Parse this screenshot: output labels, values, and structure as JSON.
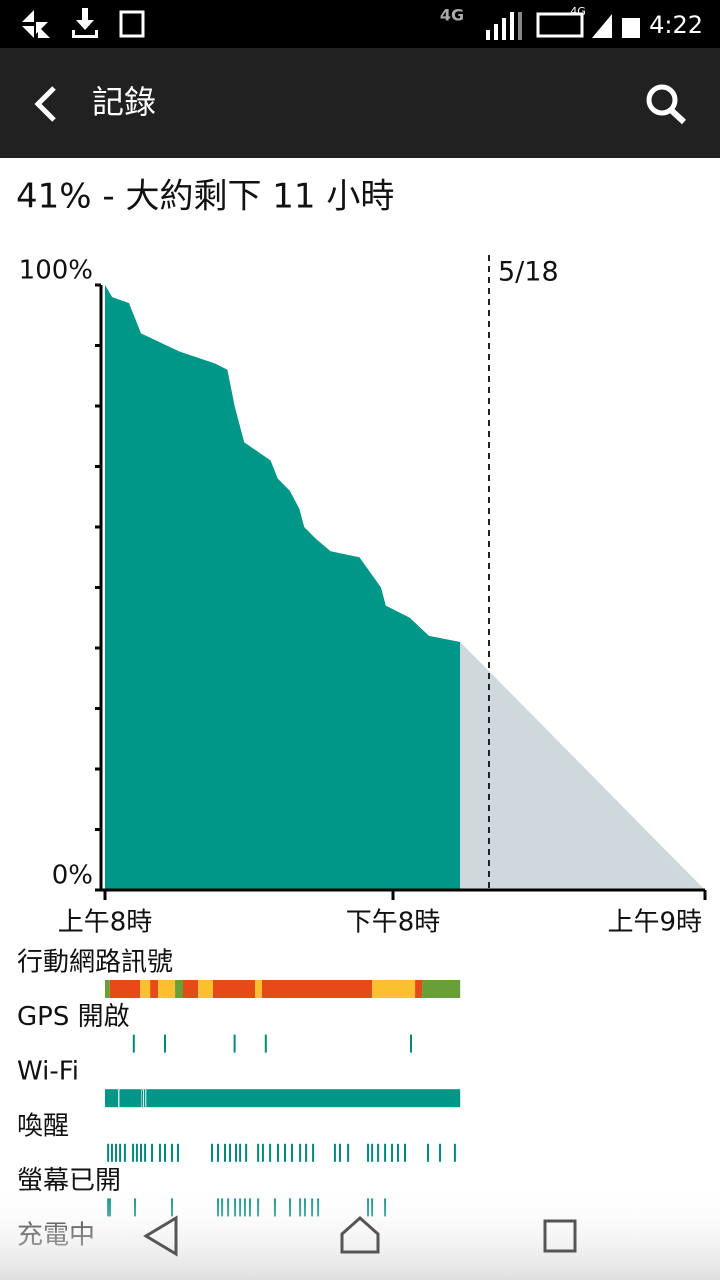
{
  "status_bar": {
    "network": "4G",
    "network2": "4G",
    "time": "4:22"
  },
  "app_bar": {
    "title": "記錄"
  },
  "summary": "41% - 大約剩下 11 小時",
  "chart_data": {
    "type": "area",
    "x": [
      0,
      0.3,
      1.0,
      1.3,
      1.5,
      3.1,
      4.6,
      5.1,
      5.4,
      5.6,
      5.8,
      6.9,
      7.2,
      7.7,
      8.1,
      8.3,
      8.8,
      9.4,
      10.6,
      11.5,
      11.7,
      12.7,
      13.5,
      14.8
    ],
    "values": [
      100,
      98,
      97,
      94,
      92,
      89,
      87,
      86,
      80,
      77,
      74,
      71,
      68,
      66,
      63,
      60,
      58,
      56,
      55,
      50,
      47,
      45,
      42,
      41
    ],
    "color": "#009688",
    "projection": {
      "x": [
        14.8,
        25
      ],
      "values": [
        41,
        0
      ],
      "color": "#cfd8dc"
    },
    "xlim": [
      0,
      25
    ],
    "xticks": [
      {
        "value": 0,
        "label": "上午8時"
      },
      {
        "value": 12,
        "label": "下午8時"
      },
      {
        "value": 25,
        "label": "上午9時"
      }
    ],
    "ylim": [
      0,
      100
    ],
    "yticks": [
      {
        "value": 0,
        "label": "0%"
      },
      {
        "value": 100,
        "label": "100%"
      }
    ],
    "yminorticks": [
      10,
      20,
      30,
      40,
      50,
      60,
      70,
      80,
      90
    ],
    "marker": {
      "value": 16,
      "label": "5/18"
    },
    "activity": [
      {
        "label": "行動網路訊號",
        "segments": [
          {
            "start": 0,
            "end": 0.2,
            "color": "#689f38"
          },
          {
            "start": 0.2,
            "end": 1.46,
            "color": "#e64a19"
          },
          {
            "start": 1.46,
            "end": 1.88,
            "color": "#fbc02d"
          },
          {
            "start": 1.88,
            "end": 2.21,
            "color": "#e64a19"
          },
          {
            "start": 2.21,
            "end": 2.92,
            "color": "#fbc02d"
          },
          {
            "start": 2.92,
            "end": 3.25,
            "color": "#689f38"
          },
          {
            "start": 3.25,
            "end": 3.88,
            "color": "#e64a19"
          },
          {
            "start": 3.88,
            "end": 4.5,
            "color": "#fbc02d"
          },
          {
            "start": 4.5,
            "end": 6.25,
            "color": "#e64a19"
          },
          {
            "start": 6.25,
            "end": 6.54,
            "color": "#fbc02d"
          },
          {
            "start": 6.54,
            "end": 11.13,
            "color": "#e64a19"
          },
          {
            "start": 11.13,
            "end": 12.92,
            "color": "#fbc02d"
          },
          {
            "start": 12.92,
            "end": 13.21,
            "color": "#e64a19"
          },
          {
            "start": 13.21,
            "end": 14.8,
            "color": "#689f38"
          }
        ]
      },
      {
        "label": "GPS 開啟",
        "color": "#00897b",
        "events": [
          1.2,
          2.5,
          5.4,
          6.7,
          12.75
        ]
      },
      {
        "label": "Wi-Fi",
        "color": "#009688",
        "segments": [
          {
            "start": 0,
            "end": 0.55
          },
          {
            "start": 0.6,
            "end": 1.5
          },
          {
            "start": 1.52,
            "end": 1.58
          },
          {
            "start": 1.62,
            "end": 1.68
          },
          {
            "start": 1.72,
            "end": 14.8
          }
        ]
      },
      {
        "label": "喚醒",
        "color": "#00897b",
        "events": [
          0.13,
          0.29,
          0.46,
          0.63,
          0.83,
          1.17,
          1.33,
          1.5,
          1.67,
          1.96,
          2.29,
          2.5,
          2.79,
          3.04,
          4.46,
          4.71,
          5,
          5.21,
          5.46,
          5.63,
          5.88,
          6.38,
          6.58,
          6.88,
          7.21,
          7.5,
          7.79,
          8.13,
          8.38,
          8.67,
          9.58,
          9.79,
          10.13,
          10.96,
          11.13,
          11.38,
          11.67,
          11.96,
          12.21,
          12.5,
          13.46,
          13.96,
          14.58
        ]
      },
      {
        "label": "螢幕已開",
        "color": "#00897b",
        "events": [
          0.13,
          0.21,
          1.25,
          2.79,
          4.71,
          4.88,
          5.13,
          5.42,
          5.63,
          5.83,
          6.04,
          6.38,
          7.08,
          7.71,
          8.13,
          8.33,
          8.63,
          8.88,
          10.96,
          11.13,
          11.67
        ]
      },
      {
        "label": "充電中"
      }
    ]
  }
}
